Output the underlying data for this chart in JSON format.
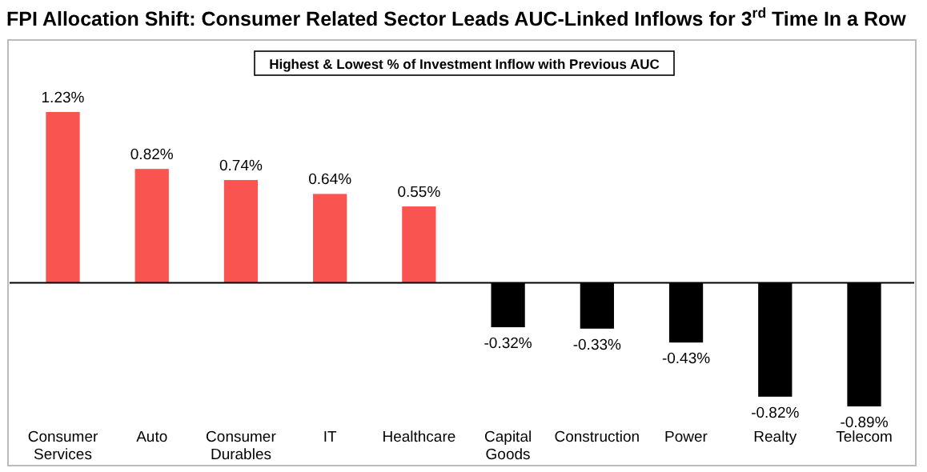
{
  "chart_data": {
    "type": "bar",
    "title": "FPI Allocation Shift: Consumer Related Sector Leads AUC-Linked Inflows for 3$^{rd}$ Time In a Row",
    "subtitle": "Highest & Lowest % of Investment Inflow with Previous AUC",
    "categories": [
      "Consumer Services",
      "Auto",
      "Consumer Durables",
      "IT",
      "Healthcare",
      "Capital Goods",
      "Construction",
      "Power",
      "Realty",
      "Telecom"
    ],
    "values": [
      1.23,
      0.82,
      0.74,
      0.64,
      0.55,
      -0.32,
      -0.33,
      -0.43,
      -0.82,
      -0.89
    ],
    "colors": [
      "#f9544f",
      "#f9544f",
      "#f9544f",
      "#f9544f",
      "#f9544f",
      "#000000",
      "#000000",
      "#000000",
      "#000000",
      "#000000"
    ],
    "value_labels": [
      "1.23%",
      "0.82%",
      "0.74%",
      "0.64%",
      "0.55%",
      "-0.32%",
      "-0.33%",
      "-0.43%",
      "-0.82%",
      "-0.89%"
    ]
  }
}
